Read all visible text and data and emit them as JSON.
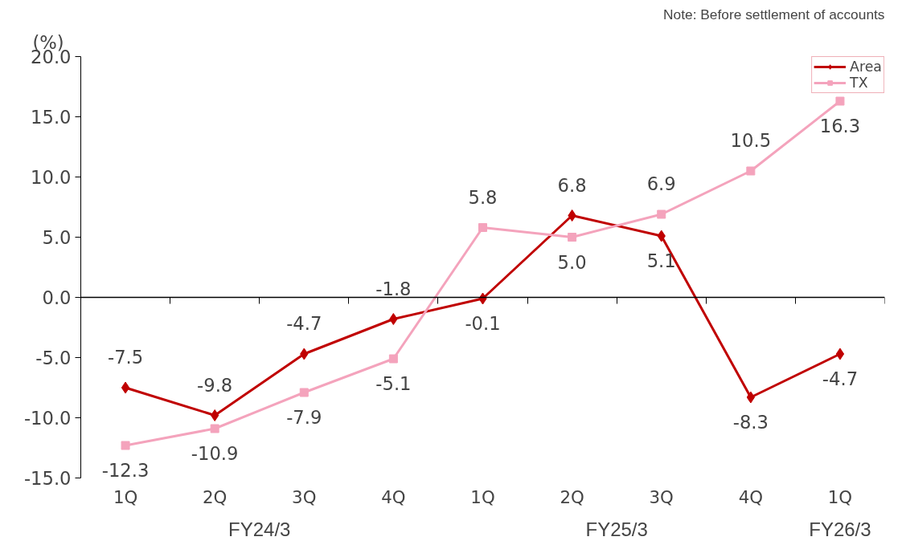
{
  "chart_data": {
    "type": "line",
    "ylabel": "(%)",
    "categories": [
      "1Q",
      "2Q",
      "3Q",
      "4Q",
      "1Q",
      "2Q",
      "3Q",
      "4Q",
      "1Q"
    ],
    "series": [
      {
        "name": "Area",
        "color": "#c00000",
        "marker": "diamond",
        "values": [
          -7.5,
          -9.8,
          -4.7,
          -1.8,
          -0.1,
          6.8,
          5.1,
          -8.3,
          -4.7
        ],
        "value_labels": [
          "-7.5",
          "-9.8",
          "-4.7",
          "-1.8",
          "-0.1",
          "6.8",
          "5.1",
          "-8.3",
          "-4.7"
        ]
      },
      {
        "name": "TX",
        "color": "#f4a3bc",
        "marker": "square",
        "values": [
          -12.3,
          -10.9,
          -7.9,
          -5.1,
          5.8,
          5.0,
          6.9,
          10.5,
          16.3
        ],
        "value_labels": [
          "-12.3",
          "-10.9",
          "-7.9",
          "-5.1",
          "5.8",
          "5.0",
          "6.9",
          "10.5",
          "16.3"
        ]
      }
    ],
    "ylim": [
      -15,
      20
    ],
    "yticks": [
      {
        "value": -15,
        "label": "-15.0"
      },
      {
        "value": -10,
        "label": "-10.0"
      },
      {
        "value": -5,
        "label": "-5.0"
      },
      {
        "value": 0,
        "label": "0.0"
      },
      {
        "value": 5,
        "label": "5.0"
      },
      {
        "value": 10,
        "label": "10.0"
      },
      {
        "value": 15,
        "label": "15.0"
      },
      {
        "value": 20,
        "label": "20.0"
      }
    ],
    "annotations": [
      "Note: Before settlement of accounts",
      "FY24/3",
      "FY25/3",
      "FY26/3"
    ],
    "ref_lines": [
      {
        "axis": "y",
        "value": 0,
        "color": "#000000"
      }
    ],
    "data_labels": true,
    "grid": false,
    "legend": "top right",
    "line_style": "solid"
  }
}
